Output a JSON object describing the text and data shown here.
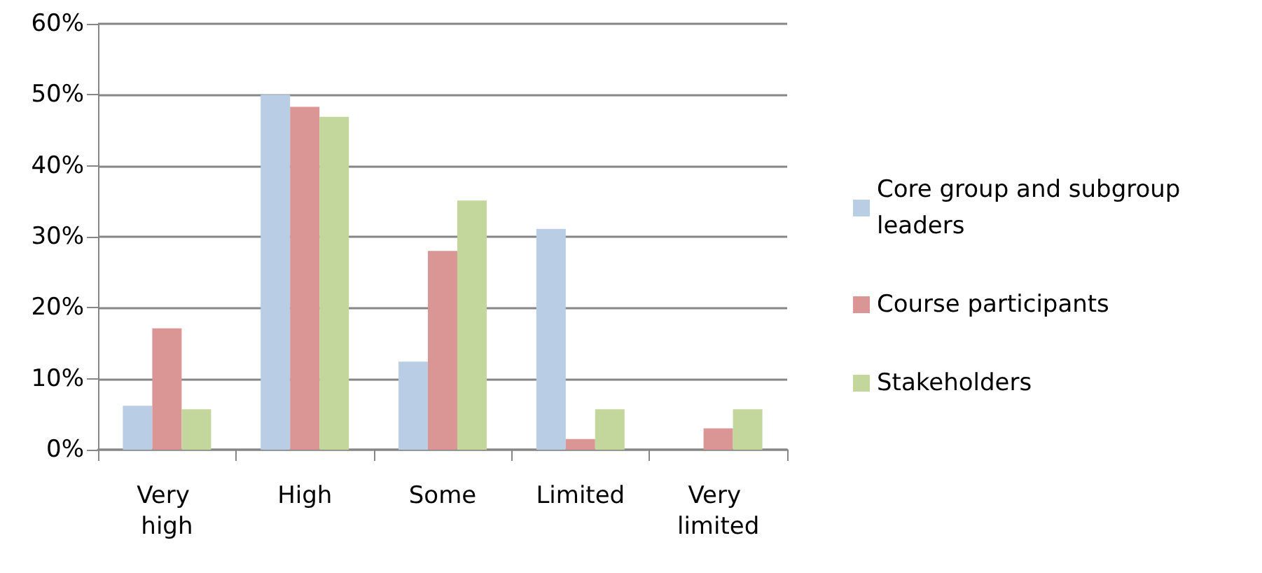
{
  "chart_data": {
    "type": "bar",
    "categories": [
      "Very high",
      "High",
      "Some",
      "Limited",
      "Very limited"
    ],
    "series": [
      {
        "name": "Core group and subgroup leaders",
        "color": "#b9cde5",
        "values": [
          6.2,
          50.0,
          12.4,
          31.1,
          0
        ]
      },
      {
        "name": "Course participants",
        "color": "#d99694",
        "values": [
          17.1,
          48.3,
          28.0,
          1.5,
          3.0
        ]
      },
      {
        "name": "Stakeholders",
        "color": "#c3d69b",
        "values": [
          5.7,
          46.9,
          35.1,
          5.7,
          5.7
        ]
      }
    ],
    "ylim": [
      0,
      60
    ],
    "yticks": [
      {
        "value": 0,
        "label": "0%"
      },
      {
        "value": 10,
        "label": "10%"
      },
      {
        "value": 20,
        "label": "20%"
      },
      {
        "value": 30,
        "label": "30%"
      },
      {
        "value": 40,
        "label": "40%"
      },
      {
        "value": 50,
        "label": "50%"
      },
      {
        "value": 60,
        "label": "60%"
      }
    ],
    "grid": "y",
    "legend": "right"
  }
}
